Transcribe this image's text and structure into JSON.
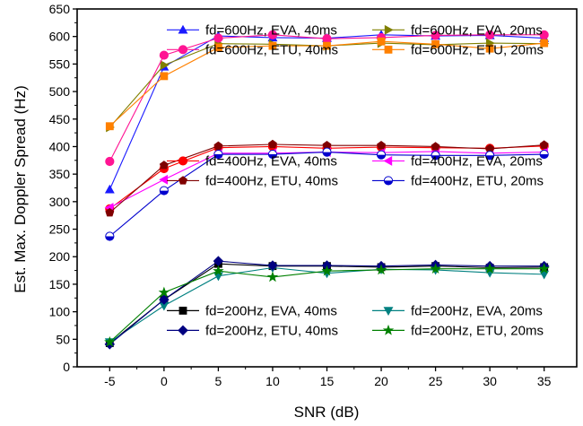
{
  "chart_data": {
    "type": "line",
    "xlabel": "SNR (dB)",
    "ylabel": "Est. Max. Doppler Spread (Hz)",
    "x": [
      -5,
      0,
      5,
      10,
      15,
      20,
      25,
      30,
      35
    ],
    "xlim": [
      -8,
      38
    ],
    "ylim": [
      0,
      650
    ],
    "xticks": [
      -5,
      0,
      5,
      10,
      15,
      20,
      25,
      30,
      35
    ],
    "yticks": [
      0,
      50,
      100,
      150,
      200,
      250,
      300,
      350,
      400,
      450,
      500,
      550,
      600,
      650
    ],
    "grid": false,
    "legend_groups": [
      {
        "placement": "top-center",
        "series": [
          0,
          1,
          2,
          3
        ]
      },
      {
        "placement": "center",
        "series": [
          4,
          5,
          6,
          7
        ]
      },
      {
        "placement": "bottom-center",
        "series": [
          8,
          9,
          10,
          11
        ]
      }
    ],
    "series": [
      {
        "name": "fd=600Hz, EVA, 40ms",
        "color": "#1a1aff",
        "marker": "triangle-up",
        "values": [
          322,
          545,
          601,
          598,
          597,
          603,
          601,
          602,
          597
        ]
      },
      {
        "name": "fd=600Hz, EVA, 20ms",
        "color": "#808000",
        "marker": "triangle-right",
        "values": [
          435,
          548,
          587,
          586,
          583,
          588,
          585,
          588,
          587
        ]
      },
      {
        "name": "fd=600Hz, ETU, 40ms",
        "color": "#ff1493",
        "marker": "circle",
        "values": [
          373,
          566,
          597,
          603,
          596,
          598,
          602,
          603,
          603
        ]
      },
      {
        "name": "fd=600Hz, ETU, 20ms",
        "color": "#ff8000",
        "marker": "square",
        "values": [
          437,
          528,
          580,
          583,
          583,
          591,
          586,
          578,
          588
        ]
      },
      {
        "name": "fd=400Hz, EVA, 40ms",
        "color": "#ff0000",
        "marker": "circle",
        "values": [
          287,
          360,
          398,
          400,
          397,
          399,
          398,
          397,
          401
        ]
      },
      {
        "name": "fd=400Hz, EVA, 20ms",
        "color": "#ff00ff",
        "marker": "triangle-left",
        "values": [
          289,
          340,
          388,
          388,
          390,
          389,
          391,
          388,
          390
        ]
      },
      {
        "name": "fd=400Hz, ETU, 40ms",
        "color": "#800000",
        "marker": "pentagon",
        "values": [
          280,
          366,
          401,
          404,
          402,
          402,
          400,
          396,
          403
        ]
      },
      {
        "name": "fd=400Hz, ETU, 20ms",
        "color": "#0000cd",
        "marker": "half-circle",
        "values": [
          237,
          320,
          386,
          386,
          390,
          385,
          384,
          384,
          386
        ]
      },
      {
        "name": "fd=200Hz, EVA, 40ms",
        "color": "#000000",
        "marker": "square",
        "values": [
          43,
          122,
          187,
          183,
          183,
          181,
          183,
          180,
          181
        ]
      },
      {
        "name": "fd=200Hz, EVA, 20ms",
        "color": "#008080",
        "marker": "triangle-down",
        "values": [
          45,
          111,
          165,
          180,
          170,
          177,
          176,
          171,
          168
        ]
      },
      {
        "name": "fd=200Hz, ETU, 40ms",
        "color": "#000080",
        "marker": "diamond",
        "values": [
          41,
          122,
          192,
          184,
          184,
          183,
          185,
          183,
          183
        ]
      },
      {
        "name": "fd=200Hz, ETU, 20ms",
        "color": "#008000",
        "marker": "star",
        "values": [
          45,
          135,
          174,
          163,
          174,
          176,
          178,
          178,
          178
        ]
      }
    ]
  }
}
